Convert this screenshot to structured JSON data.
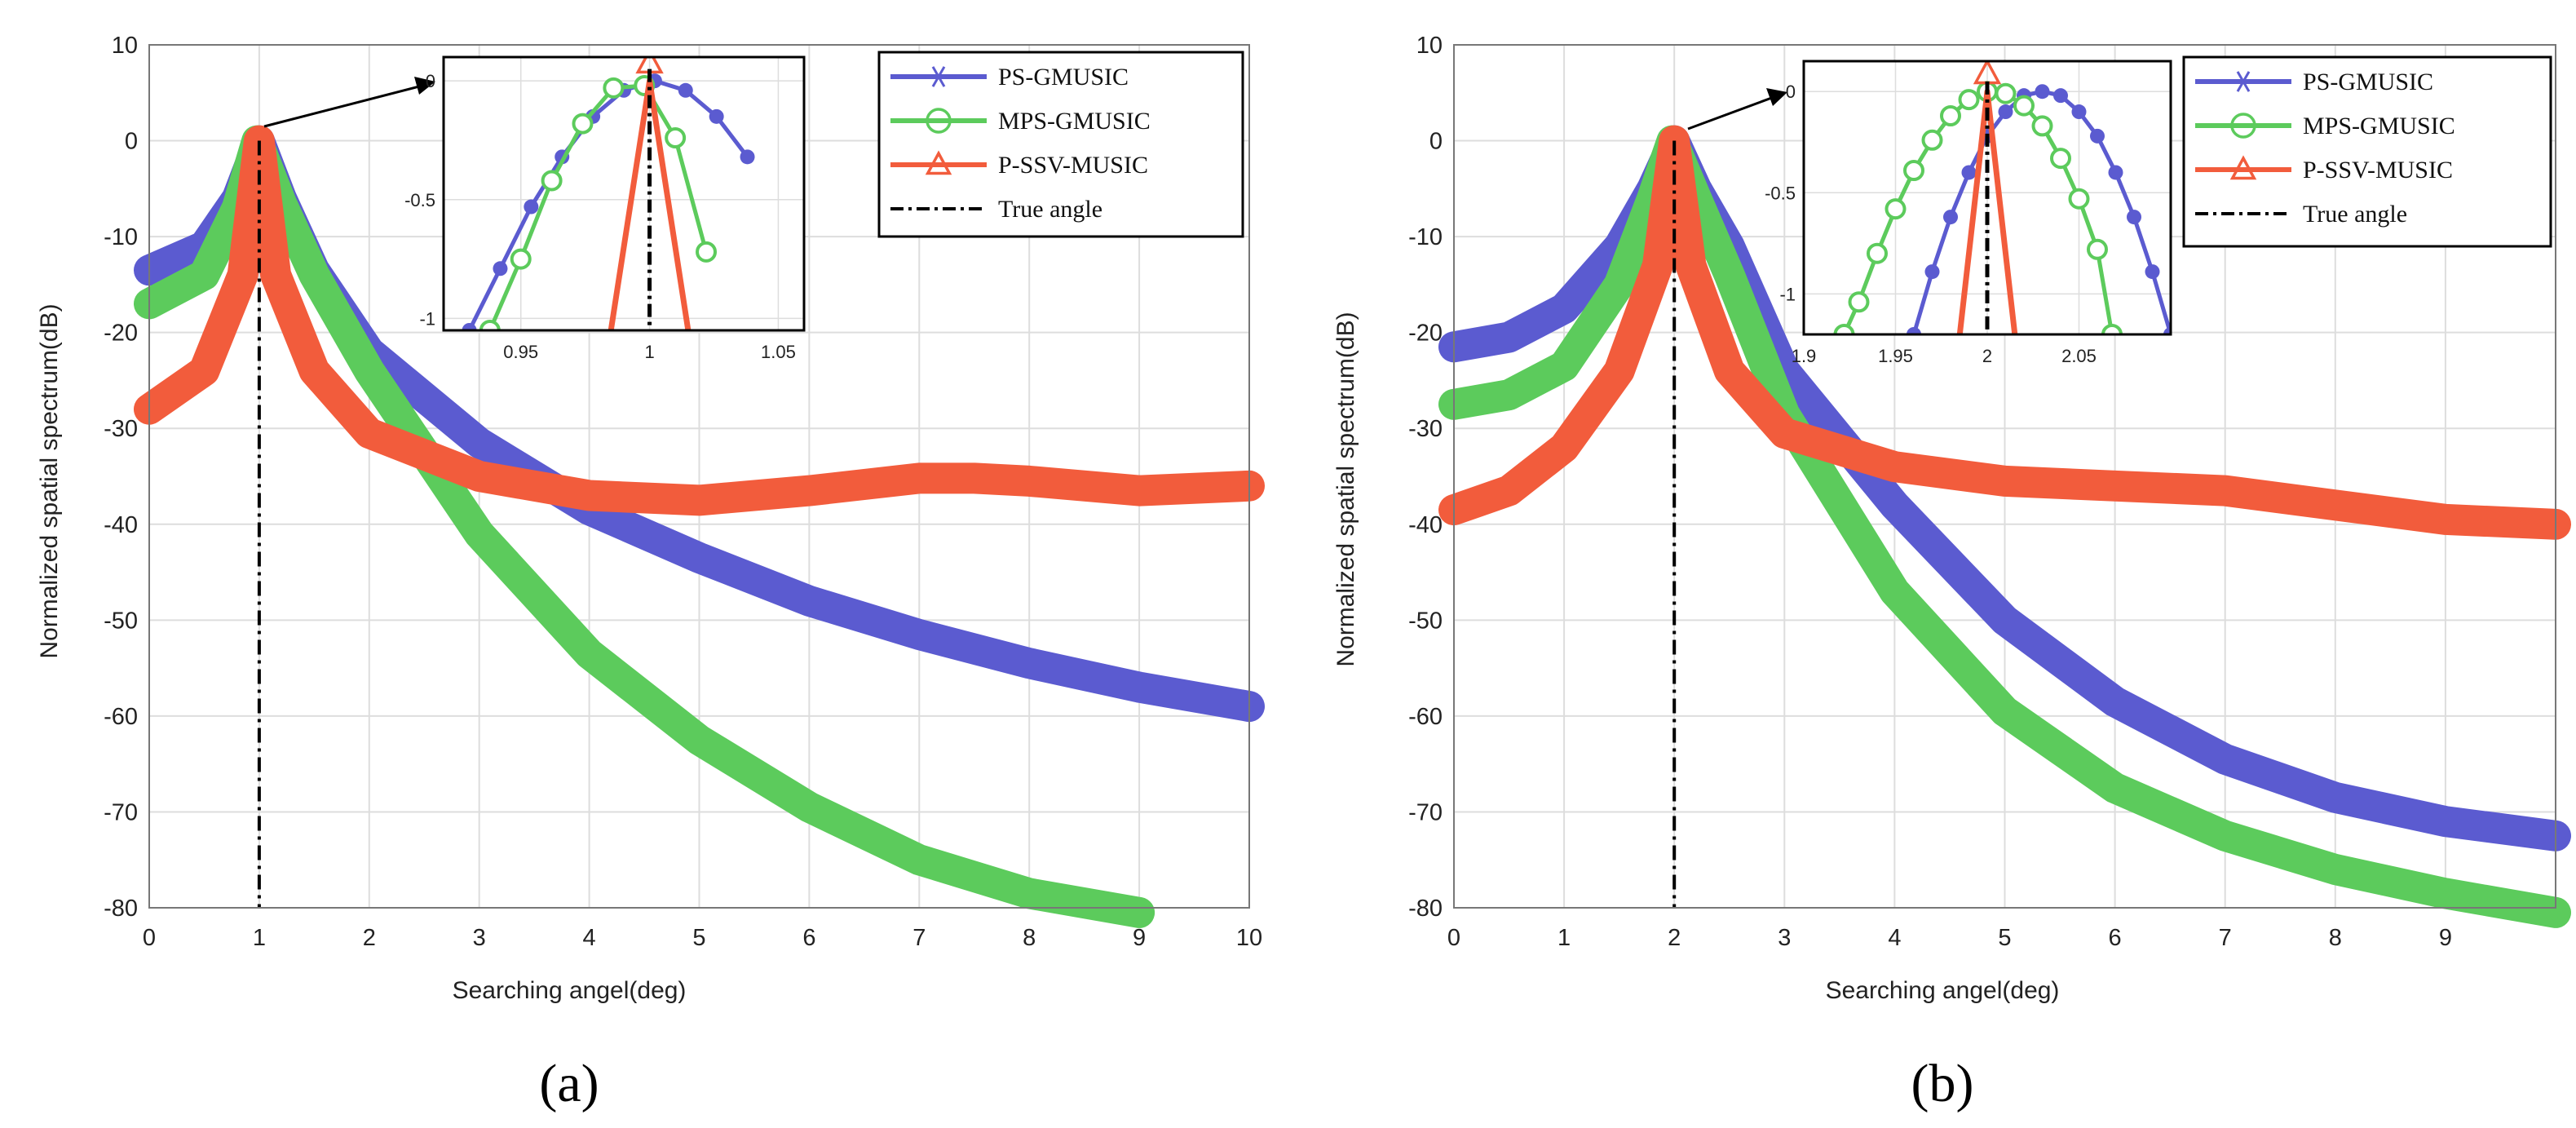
{
  "colors": {
    "ps": "#5b5bd0",
    "mps": "#5ccb5c",
    "pssv": "#f25c3c",
    "true": "#000000",
    "grid": "#dddddd"
  },
  "legend": [
    "PS-GMUSIC",
    "MPS-GMUSIC",
    "P-SSV-MUSIC",
    "True angle"
  ],
  "chart_data": [
    {
      "type": "line",
      "panel_label": "(a)",
      "xlabel": "Searching angel(deg)",
      "ylabel": "Normalized spatial spectrum(dB)",
      "xlim": [
        0,
        10
      ],
      "ylim": [
        -80,
        10
      ],
      "xticks": [
        0,
        1,
        2,
        3,
        4,
        5,
        6,
        7,
        8,
        9,
        10
      ],
      "xtick_labels": [
        "0",
        "1",
        "2",
        "3",
        "4",
        "5",
        "6",
        "7",
        "8",
        "9",
        "10"
      ],
      "yticks": [
        10,
        0,
        -10,
        -20,
        -30,
        -40,
        -50,
        -60,
        -70,
        -80
      ],
      "ytick_labels": [
        "10",
        "0",
        "-10",
        "-20",
        "-30",
        "-40",
        "-50",
        "-60",
        "-70",
        "-80"
      ],
      "true_angle": 1,
      "series": [
        {
          "name": "PS-GMUSIC",
          "x": [
            0,
            0.5,
            0.8,
            1,
            1.2,
            1.5,
            2,
            3,
            4,
            5,
            6,
            7,
            8,
            9,
            10
          ],
          "y": [
            -13.5,
            -11,
            -6,
            0,
            -6,
            -13.5,
            -22,
            -31.5,
            -38.5,
            -43.5,
            -48,
            -51.5,
            -54.5,
            -57,
            -59
          ]
        },
        {
          "name": "MPS-GMUSIC",
          "x": [
            0,
            0.5,
            0.8,
            0.98,
            1.2,
            1.5,
            2,
            3,
            4,
            5,
            6,
            7,
            8,
            9
          ],
          "y": [
            -17,
            -14,
            -7,
            0,
            -6.5,
            -14,
            -24,
            -41,
            -53.5,
            -62.5,
            -69.5,
            -75,
            -78.5,
            -80.5
          ]
        },
        {
          "name": "P-SSV-MUSIC",
          "x": [
            0,
            0.5,
            0.85,
            1,
            1.15,
            1.5,
            2,
            3,
            4,
            5,
            6,
            7,
            7.5,
            8,
            9,
            10
          ],
          "y": [
            -28,
            -24,
            -14,
            0,
            -14,
            -24,
            -30.5,
            -35,
            -37,
            -37.5,
            -36.5,
            -35.2,
            -35.2,
            -35.5,
            -36.5,
            -36
          ]
        }
      ],
      "inset": {
        "xlim": [
          0.92,
          1.06
        ],
        "ylim": [
          -1.05,
          0.1
        ],
        "xticks": [
          0.95,
          1,
          1.05
        ],
        "xtick_labels": [
          "0.95",
          "1",
          "1.05"
        ],
        "yticks": [
          0,
          -0.5,
          -1
        ],
        "ytick_labels": [
          "0",
          "-0.5",
          "-1"
        ],
        "true_angle": 1,
        "series": [
          {
            "name": "PS-GMUSIC",
            "x": [
              0.93,
              0.942,
              0.954,
              0.966,
              0.978,
              0.99,
              1.002,
              1.014,
              1.026,
              1.038
            ],
            "y": [
              -1.05,
              -0.79,
              -0.53,
              -0.32,
              -0.15,
              -0.04,
              0.0,
              -0.04,
              -0.15,
              -0.32
            ]
          },
          {
            "name": "MPS-GMUSIC",
            "x": [
              0.938,
              0.95,
              0.962,
              0.974,
              0.986,
              0.998,
              1.01,
              1.022
            ],
            "y": [
              -1.05,
              -0.75,
              -0.42,
              -0.18,
              -0.03,
              -0.02,
              -0.24,
              -0.72
            ]
          },
          {
            "name": "P-SSV-MUSIC",
            "x": [
              0.985,
              1.0,
              1.015
            ],
            "y": [
              -1.05,
              0.0,
              -1.05
            ]
          }
        ]
      }
    },
    {
      "type": "line",
      "panel_label": "(b)",
      "xlabel": "Searching angel(deg)",
      "ylabel": "Normalized spatial spectrum(dB)",
      "xlim": [
        0,
        10
      ],
      "ylim": [
        -80,
        10
      ],
      "xticks": [
        0,
        1,
        2,
        3,
        4,
        5,
        6,
        7,
        8,
        9
      ],
      "xtick_labels": [
        "0",
        "1",
        "2",
        "3",
        "4",
        "5",
        "6",
        "7",
        "8",
        "9"
      ],
      "yticks": [
        10,
        0,
        -10,
        -20,
        -30,
        -40,
        -50,
        -60,
        -70,
        -80
      ],
      "ytick_labels": [
        "10",
        "0",
        "-10",
        "-20",
        "-30",
        "-40",
        "-50",
        "-60",
        "-70",
        "-80"
      ],
      "true_angle": 2,
      "series": [
        {
          "name": "PS-GMUSIC",
          "x": [
            0,
            0.5,
            1,
            1.5,
            1.8,
            2,
            2.2,
            2.5,
            3,
            4,
            5,
            6,
            7,
            8,
            9,
            10
          ],
          "y": [
            -21.5,
            -20.5,
            -17.5,
            -11,
            -5,
            0,
            -5,
            -11,
            -24,
            -38,
            -50,
            -58.5,
            -64.5,
            -68.5,
            -71,
            -72.5
          ]
        },
        {
          "name": "MPS-GMUSIC",
          "x": [
            0,
            0.5,
            1,
            1.5,
            1.8,
            1.98,
            2.2,
            2.5,
            3,
            4,
            5,
            6,
            7,
            8,
            9,
            10
          ],
          "y": [
            -27.5,
            -26.5,
            -23.5,
            -15,
            -6,
            0,
            -6,
            -14,
            -28.5,
            -47,
            -59.5,
            -67.5,
            -72.5,
            -76,
            -78.5,
            -80.5
          ]
        },
        {
          "name": "P-SSV-MUSIC",
          "x": [
            0,
            0.5,
            1,
            1.5,
            1.85,
            2,
            2.15,
            2.5,
            3,
            4,
            5,
            6,
            7,
            8,
            9,
            10
          ],
          "y": [
            -38.5,
            -36.5,
            -32,
            -24,
            -13,
            0,
            -13,
            -24,
            -30.5,
            -34,
            -35.5,
            -36,
            -36.5,
            -38,
            -39.5,
            -40
          ]
        }
      ],
      "inset": {
        "xlim": [
          1.9,
          2.1
        ],
        "ylim": [
          -1.2,
          0.15
        ],
        "xticks": [
          1.9,
          1.95,
          2,
          2.05
        ],
        "xtick_labels": [
          "1.9",
          "1.95",
          "2",
          "2.05"
        ],
        "yticks": [
          0,
          -0.5,
          -1
        ],
        "ytick_labels": [
          "0",
          "-0.5",
          "-1"
        ],
        "true_angle": 2,
        "series": [
          {
            "name": "PS-GMUSIC",
            "x": [
              1.96,
              1.97,
              1.98,
              1.99,
              2.0,
              2.01,
              2.02,
              2.03,
              2.04,
              2.05,
              2.06,
              2.07,
              2.08,
              2.09,
              2.1
            ],
            "y": [
              -1.2,
              -0.89,
              -0.62,
              -0.4,
              -0.22,
              -0.1,
              -0.02,
              0.0,
              -0.02,
              -0.1,
              -0.22,
              -0.4,
              -0.62,
              -0.89,
              -1.2
            ]
          },
          {
            "name": "MPS-GMUSIC",
            "x": [
              1.922,
              1.93,
              1.94,
              1.95,
              1.96,
              1.97,
              1.98,
              1.99,
              2.0,
              2.01,
              2.02,
              2.03,
              2.04,
              2.05,
              2.06,
              2.068
            ],
            "y": [
              -1.2,
              -1.04,
              -0.8,
              -0.58,
              -0.39,
              -0.24,
              -0.12,
              -0.04,
              0.0,
              -0.01,
              -0.07,
              -0.17,
              -0.33,
              -0.53,
              -0.78,
              -1.2
            ]
          },
          {
            "name": "P-SSV-MUSIC",
            "x": [
              1.985,
              2.0,
              2.015
            ],
            "y": [
              -1.2,
              0.0,
              -1.2
            ]
          }
        ]
      }
    }
  ]
}
